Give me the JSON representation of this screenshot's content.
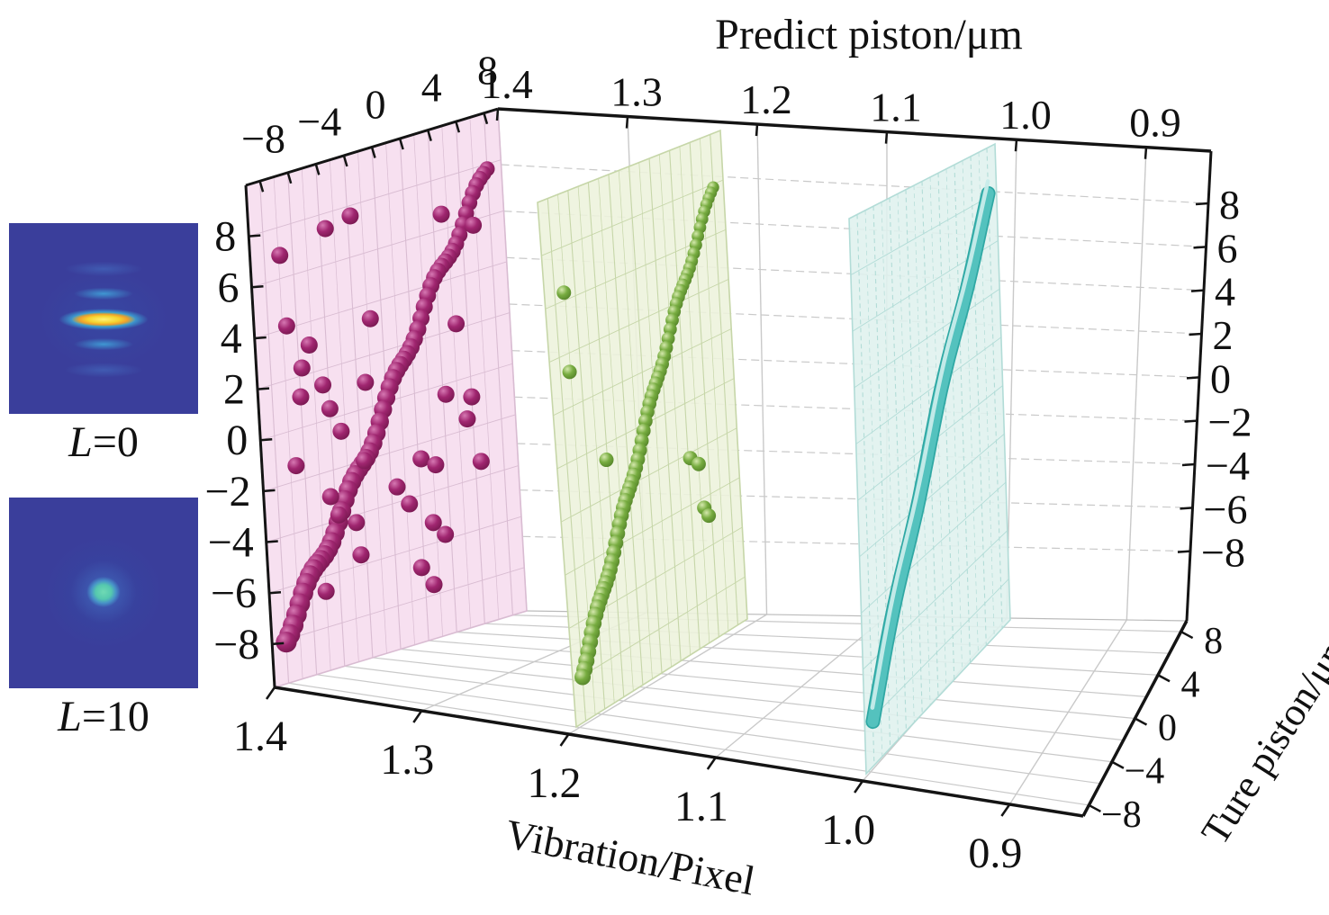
{
  "insets": [
    {
      "name": "psf L=0",
      "label_var": "L",
      "label_val": "=0"
    },
    {
      "name": "psf L=10",
      "label_var": "L",
      "label_val": "=10"
    }
  ],
  "chart_data": {
    "type": "scatter",
    "projection": "3d",
    "title": "Predict piston/μm",
    "axes": {
      "vibration": {
        "label": "Vibration/Pixel",
        "tick_labels": [
          "1.4",
          "1.3",
          "1.2",
          "1.1",
          "1.0",
          "0.9"
        ],
        "tick_values": [
          1.4,
          1.3,
          1.2,
          1.1,
          1.0,
          0.9
        ],
        "range": [
          1.4,
          0.85
        ]
      },
      "predict": {
        "label": "Predict piston/μm",
        "tick_labels": [
          "−8",
          "−4",
          "0",
          "4",
          "8"
        ],
        "tick_values": [
          -8,
          -4,
          0,
          4,
          8
        ],
        "minor_step": 2,
        "range": [
          -9,
          9
        ]
      },
      "true_left": {
        "tick_labels": [
          "8",
          "6",
          "4",
          "2",
          "0",
          "−2",
          "−4",
          "−6",
          "−8"
        ],
        "tick_values": [
          8,
          6,
          4,
          2,
          0,
          -2,
          -4,
          -6,
          -8
        ],
        "range": [
          -9.7,
          10
        ]
      },
      "true_right": {
        "tick_labels": [
          "8",
          "6",
          "4",
          "2",
          "0",
          "−2",
          "−4",
          "−6",
          "−8"
        ],
        "tick_values": [
          8,
          6,
          4,
          2,
          0,
          -2,
          -4,
          -6,
          -8
        ]
      },
      "ture_depth": {
        "label": "Ture piston/μm",
        "tick_labels": [
          "8",
          "4",
          "0",
          "−4",
          "−8"
        ],
        "tick_values": [
          8,
          4,
          0,
          -4,
          -8
        ]
      }
    },
    "grid": {
      "wall_color": "#c9c9c9",
      "floor_color": "#c9c9c9"
    },
    "series": [
      {
        "name": "vibration 1.4",
        "vibration": 1.4,
        "style": "spheres",
        "sphere_color": "#a02670",
        "sphere_highlight": "#d678b2",
        "sphere_dark": "#6e1448",
        "plane_color": "#f6dcee",
        "grid_color": "#d9bcd2",
        "diagonal": {
          "from": [
            -8,
            -8
          ],
          "to": [
            8,
            8
          ]
        },
        "outliers": [
          [
            -6.9,
            6.9
          ],
          [
            -3.6,
            7.4
          ],
          [
            -1.8,
            7.6
          ],
          [
            -6.7,
            4.1
          ],
          [
            -5.2,
            3.1
          ],
          [
            -5.8,
            2.3
          ],
          [
            -6.0,
            1.2
          ],
          [
            -4.4,
            1.4
          ],
          [
            -4.0,
            0.4
          ],
          [
            -3.3,
            -0.6
          ],
          [
            -6.6,
            -1.4
          ],
          [
            -4.3,
            -3.0
          ],
          [
            -3.8,
            -3.8
          ],
          [
            -2.6,
            -4.3
          ],
          [
            -1.8,
            -2.0
          ],
          [
            -0.8,
            3.4
          ],
          [
            -1.4,
            1.0
          ],
          [
            0.4,
            -3.4
          ],
          [
            1.2,
            -4.2
          ],
          [
            2.2,
            -2.6
          ],
          [
            3.2,
            -3.0
          ],
          [
            2.8,
            -5.2
          ],
          [
            3.6,
            -5.8
          ],
          [
            1.8,
            -6.8
          ],
          [
            2.6,
            -7.6
          ],
          [
            5.2,
            2.2
          ],
          [
            6.0,
            -0.8
          ],
          [
            5.6,
            -1.6
          ],
          [
            6.4,
            -3.4
          ],
          [
            4.2,
            -0.4
          ],
          [
            4.6,
            6.6
          ],
          [
            6.8,
            5.8
          ],
          [
            -2.4,
            -5.6
          ],
          [
            -5.0,
            -6.6
          ]
        ]
      },
      {
        "name": "vibration 1.2",
        "vibration": 1.2,
        "style": "spheres",
        "sphere_color": "#77ac40",
        "sphere_highlight": "#d4e8ac",
        "sphere_dark": "#4c7a24",
        "plane_color": "#edf3dc",
        "grid_color": "#c6d6a8",
        "diagonal": {
          "from": [
            -8,
            -8
          ],
          "to": [
            8,
            8
          ]
        },
        "outliers": [
          [
            -7.1,
            6.3
          ],
          [
            -7.1,
            3.3
          ],
          [
            -4.1,
            -0.6
          ],
          [
            4.2,
            -2.2
          ],
          [
            5.0,
            -2.6
          ],
          [
            5.3,
            -4.4
          ],
          [
            5.7,
            -4.8
          ]
        ]
      },
      {
        "name": "vibration 1.0",
        "vibration": 1.0,
        "style": "tube",
        "tube_color": "#54c2be",
        "tube_edge": "#2fa8a4",
        "tube_highlight": "#c8ecea",
        "plane_color": "#dff1ee",
        "grid_color": "#b2dcd7",
        "diagonal": {
          "from": [
            -8,
            -8
          ],
          "to": [
            8,
            8
          ]
        },
        "outliers": []
      }
    ]
  }
}
